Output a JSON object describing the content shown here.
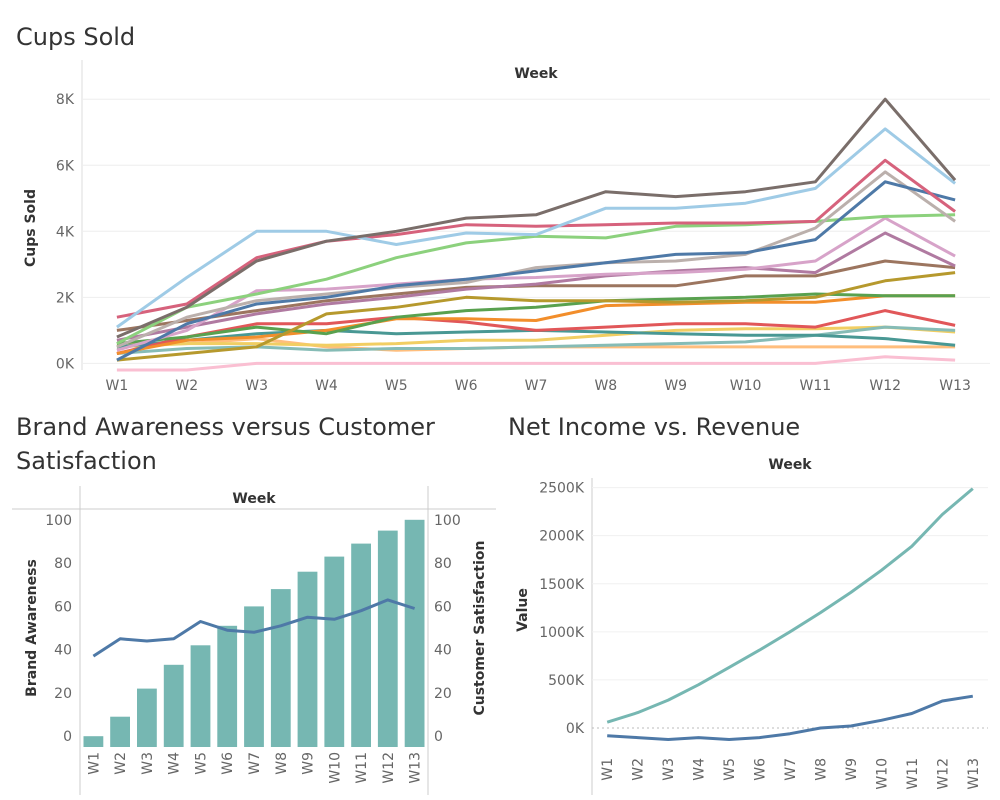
{
  "chart_data": [
    {
      "id": "cups",
      "type": "line",
      "title": "Cups Sold",
      "column_header": "Week",
      "ylabel": "Cups Sold",
      "ylim": [
        -200,
        8400
      ],
      "y_ticks": [
        0,
        2000,
        4000,
        6000,
        8000
      ],
      "y_tick_labels": [
        "0K",
        "2K",
        "4K",
        "6K",
        "8K"
      ],
      "categories": [
        "W1",
        "W2",
        "W3",
        "W4",
        "W5",
        "W6",
        "W7",
        "W8",
        "W9",
        "W10",
        "W11",
        "W12",
        "W13"
      ],
      "series": [
        {
          "color": "#7a6e6a",
          "values": [
            800,
            1700,
            3100,
            3700,
            4000,
            4400,
            4500,
            5200,
            5050,
            5200,
            5500,
            8000,
            5550
          ]
        },
        {
          "color": "#9fcbe6",
          "values": [
            1100,
            2600,
            4000,
            4000,
            3600,
            3950,
            3900,
            4700,
            4700,
            4850,
            5300,
            7100,
            5450
          ]
        },
        {
          "color": "#d6627c",
          "values": [
            1400,
            1800,
            3200,
            3700,
            3900,
            4200,
            4150,
            4200,
            4250,
            4250,
            4300,
            6150,
            4600
          ]
        },
        {
          "color": "#4e79a7",
          "values": [
            100,
            1200,
            1800,
            2000,
            2350,
            2550,
            2800,
            3050,
            3300,
            3350,
            3750,
            5500,
            4950
          ]
        },
        {
          "color": "#bbb0ac",
          "values": [
            500,
            1400,
            1900,
            2100,
            2300,
            2450,
            2900,
            3050,
            3100,
            3300,
            4100,
            5800,
            4300
          ]
        },
        {
          "color": "#8cd17d",
          "values": [
            600,
            1700,
            2100,
            2550,
            3200,
            3650,
            3850,
            3800,
            4150,
            4200,
            4300,
            4450,
            4500
          ]
        },
        {
          "color": "#d7a3c9",
          "values": [
            400,
            1000,
            2200,
            2250,
            2400,
            2550,
            2600,
            2700,
            2750,
            2850,
            3100,
            4400,
            3250
          ]
        },
        {
          "color": "#b07aa1",
          "values": [
            700,
            1100,
            1500,
            1800,
            2000,
            2250,
            2400,
            2650,
            2800,
            2900,
            2750,
            3950,
            2950
          ]
        },
        {
          "color": "#9c755f",
          "values": [
            1000,
            1300,
            1600,
            1900,
            2100,
            2300,
            2350,
            2350,
            2350,
            2650,
            2650,
            3100,
            2900
          ]
        },
        {
          "color": "#b6992d",
          "values": [
            100,
            300,
            500,
            1500,
            1700,
            2000,
            1900,
            1900,
            1850,
            1900,
            2000,
            2500,
            2750
          ]
        },
        {
          "color": "#59a14f",
          "values": [
            600,
            800,
            1100,
            900,
            1400,
            1600,
            1700,
            1900,
            1950,
            2000,
            2100,
            2050,
            2050
          ]
        },
        {
          "color": "#f28e2b",
          "values": [
            300,
            700,
            800,
            1000,
            1350,
            1350,
            1300,
            1750,
            1800,
            1850,
            1850,
            2050,
            2050
          ]
        },
        {
          "color": "#e15759",
          "values": [
            300,
            800,
            1200,
            1200,
            1400,
            1250,
            1000,
            1100,
            1200,
            1200,
            1100,
            1600,
            1150
          ]
        },
        {
          "color": "#499894",
          "values": [
            500,
            700,
            900,
            1000,
            900,
            950,
            1000,
            950,
            900,
            850,
            850,
            750,
            550
          ]
        },
        {
          "color": "#86bcb6",
          "values": [
            300,
            450,
            500,
            400,
            450,
            450,
            500,
            550,
            600,
            650,
            850,
            1100,
            1000
          ]
        },
        {
          "color": "#f1ce63",
          "values": [
            500,
            600,
            600,
            550,
            600,
            700,
            700,
            850,
            1000,
            1050,
            1050,
            1100,
            950
          ]
        },
        {
          "color": "#ffbe7d",
          "values": [
            550,
            600,
            750,
            500,
            400,
            450,
            500,
            500,
            500,
            500,
            500,
            500,
            500
          ]
        },
        {
          "color": "#fabfd2",
          "values": [
            -200,
            -200,
            0,
            0,
            0,
            0,
            0,
            0,
            0,
            0,
            0,
            200,
            100
          ]
        }
      ]
    },
    {
      "id": "brand",
      "type": "bar",
      "title": "Brand Awareness versus Customer Satisfaction",
      "column_header": "Week",
      "ylabel_left": "Brand Awareness",
      "ylabel_right": "Customer Satisfaction",
      "ylim": [
        -5,
        105
      ],
      "y_ticks": [
        0,
        20,
        40,
        60,
        80,
        100
      ],
      "y_tick_labels": [
        "0",
        "20",
        "40",
        "60",
        "80",
        "100"
      ],
      "categories": [
        "W1",
        "W2",
        "W3",
        "W4",
        "W5",
        "W6",
        "W7",
        "W8",
        "W9",
        "W10",
        "W11",
        "W12",
        "W13"
      ],
      "bar_color": "#76b7b2",
      "line_color": "#4e79a7",
      "series": [
        {
          "name": "Brand Awareness",
          "values": [
            0,
            9,
            22,
            33,
            42,
            51,
            60,
            68,
            76,
            83,
            89,
            95,
            100
          ]
        },
        {
          "name": "Customer Satisfaction",
          "values": [
            37,
            45,
            44,
            45,
            53,
            49,
            48,
            51,
            55,
            54,
            58,
            63,
            59
          ]
        }
      ]
    },
    {
      "id": "income",
      "type": "line",
      "title": "Net Income vs. Revenue",
      "column_header": "Week",
      "ylabel": "Value",
      "ylim": [
        -250000,
        2600000
      ],
      "y_ticks": [
        0,
        500000,
        1000000,
        1500000,
        2000000,
        2500000
      ],
      "y_tick_labels": [
        "0K",
        "500K",
        "1000K",
        "1500K",
        "2000K",
        "2500K"
      ],
      "categories": [
        "W1",
        "W2",
        "W3",
        "W4",
        "W5",
        "W6",
        "W7",
        "W8",
        "W9",
        "W10",
        "W11",
        "W12",
        "W13"
      ],
      "series": [
        {
          "color": "#76b7b2",
          "values": [
            60000,
            160000,
            290000,
            450000,
            630000,
            810000,
            1000000,
            1200000,
            1410000,
            1640000,
            1890000,
            2220000,
            2490000
          ]
        },
        {
          "color": "#4e79a7",
          "values": [
            -80000,
            -100000,
            -120000,
            -100000,
            -120000,
            -100000,
            -60000,
            0,
            20000,
            80000,
            150000,
            280000,
            330000
          ]
        }
      ]
    }
  ]
}
